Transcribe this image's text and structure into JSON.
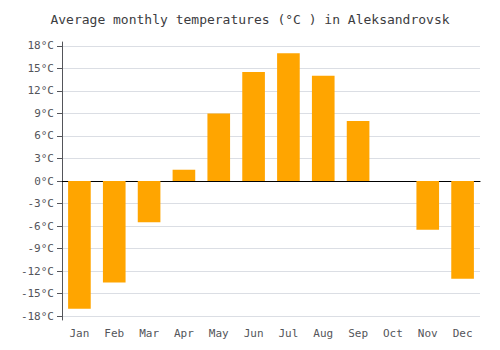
{
  "chart_data": {
    "type": "bar",
    "title": "Average monthly temperatures (°C ) in Aleksandrovsk",
    "categories": [
      "Jan",
      "Feb",
      "Mar",
      "Apr",
      "May",
      "Jun",
      "Jul",
      "Aug",
      "Sep",
      "Oct",
      "Nov",
      "Dec"
    ],
    "values": [
      -17,
      -13.5,
      -5.5,
      1.5,
      9,
      14.5,
      17,
      14,
      8,
      0,
      -6.5,
      -13
    ],
    "color": "#FFA500",
    "ylim": [
      -18.5,
      18.5
    ],
    "yticks": [
      {
        "value": -18,
        "label": "-18°C"
      },
      {
        "value": -15,
        "label": "-15°C"
      },
      {
        "value": -12,
        "label": "-12°C"
      },
      {
        "value": -9,
        "label": "-9°C"
      },
      {
        "value": -6,
        "label": "-6°C"
      },
      {
        "value": -3,
        "label": "-3°C"
      },
      {
        "value": 0,
        "label": "0°C"
      },
      {
        "value": 3,
        "label": "3°C"
      },
      {
        "value": 6,
        "label": "6°C"
      },
      {
        "value": 9,
        "label": "9°C"
      },
      {
        "value": 12,
        "label": "12°C"
      },
      {
        "value": 15,
        "label": "15°C"
      },
      {
        "value": 18,
        "label": "18°C"
      }
    ],
    "grid": true
  }
}
